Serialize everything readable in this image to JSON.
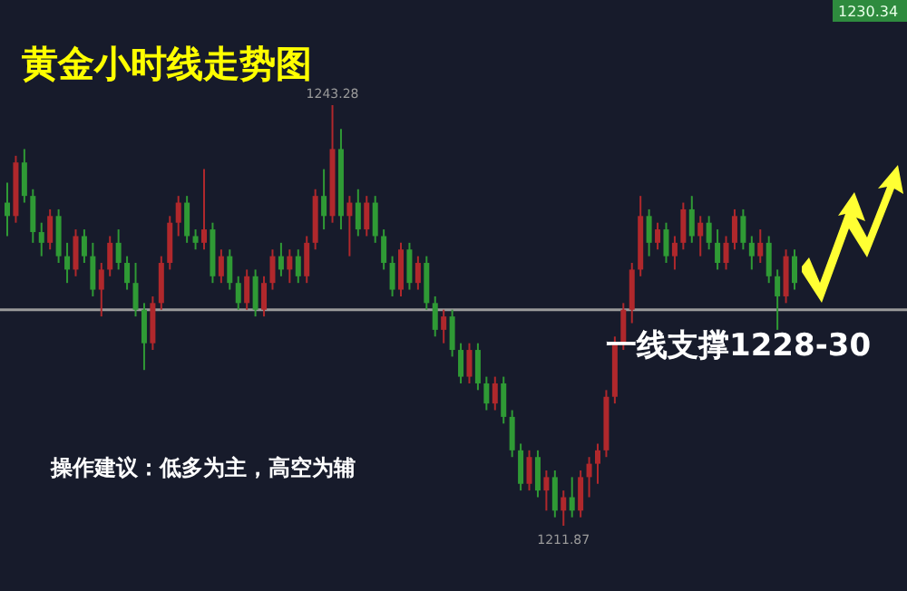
{
  "chart_data": {
    "type": "candlestick",
    "title": "黄金小时线走势图",
    "categories": [
      null,
      null,
      null,
      null,
      null,
      null,
      null,
      null,
      null,
      null,
      null,
      null,
      null,
      null,
      null,
      null,
      null,
      null,
      null,
      null,
      null,
      null,
      null,
      null,
      null,
      null,
      null,
      null,
      null,
      null,
      null,
      null,
      null,
      null,
      null,
      null,
      null,
      null,
      null,
      null,
      null,
      null,
      null,
      null,
      null,
      null,
      null,
      null,
      null,
      null,
      null,
      null,
      null,
      null,
      null,
      null,
      null,
      null,
      null,
      null,
      null,
      null,
      null,
      null,
      null,
      null,
      null,
      null,
      null,
      null,
      null,
      null,
      null,
      null,
      null,
      null,
      null,
      null,
      null,
      null,
      null,
      null,
      null,
      null,
      null,
      null,
      null,
      null,
      null,
      null,
      null,
      null,
      null
    ],
    "ohlc": [
      [
        1236.0,
        1237.5,
        1233.5,
        1235.0
      ],
      [
        1235.0,
        1239.5,
        1234.5,
        1239.0
      ],
      [
        1239.0,
        1240.0,
        1236.0,
        1236.5
      ],
      [
        1236.5,
        1237.0,
        1233.0,
        1233.8
      ],
      [
        1233.8,
        1234.5,
        1232.0,
        1233.0
      ],
      [
        1233.0,
        1235.5,
        1232.5,
        1235.0
      ],
      [
        1235.0,
        1235.5,
        1231.5,
        1232.0
      ],
      [
        1232.0,
        1233.0,
        1230.0,
        1231.0
      ],
      [
        1231.0,
        1234.0,
        1230.5,
        1233.5
      ],
      [
        1233.5,
        1234.0,
        1231.5,
        1232.0
      ],
      [
        1232.0,
        1233.0,
        1229.0,
        1229.5
      ],
      [
        1229.5,
        1231.5,
        1227.5,
        1231.0
      ],
      [
        1231.0,
        1233.5,
        1230.5,
        1233.0
      ],
      [
        1233.0,
        1234.0,
        1231.0,
        1231.5
      ],
      [
        1231.5,
        1232.0,
        1229.5,
        1230.0
      ],
      [
        1230.0,
        1231.5,
        1227.5,
        1228.0
      ],
      [
        1228.0,
        1228.5,
        1223.5,
        1225.5
      ],
      [
        1225.5,
        1229.0,
        1225.0,
        1228.5
      ],
      [
        1228.5,
        1232.0,
        1228.0,
        1231.5
      ],
      [
        1231.5,
        1235.0,
        1231.0,
        1234.5
      ],
      [
        1234.5,
        1236.5,
        1233.5,
        1236.0
      ],
      [
        1236.0,
        1236.5,
        1233.0,
        1233.5
      ],
      [
        1233.5,
        1234.0,
        1232.5,
        1233.0
      ],
      [
        1233.0,
        1238.5,
        1232.5,
        1234.0
      ],
      [
        1234.0,
        1234.5,
        1230.0,
        1230.5
      ],
      [
        1230.5,
        1232.5,
        1230.0,
        1232.0
      ],
      [
        1232.0,
        1232.5,
        1229.5,
        1230.0
      ],
      [
        1230.0,
        1230.5,
        1228.0,
        1228.5
      ],
      [
        1228.5,
        1231.0,
        1228.0,
        1230.5
      ],
      [
        1230.5,
        1231.0,
        1227.5,
        1228.0
      ],
      [
        1228.0,
        1230.5,
        1227.5,
        1230.0
      ],
      [
        1230.0,
        1232.5,
        1229.5,
        1232.0
      ],
      [
        1232.0,
        1233.0,
        1230.5,
        1231.0
      ],
      [
        1231.0,
        1232.5,
        1230.0,
        1232.0
      ],
      [
        1232.0,
        1232.5,
        1230.0,
        1230.5
      ],
      [
        1230.5,
        1233.5,
        1230.0,
        1233.0
      ],
      [
        1233.0,
        1237.0,
        1232.5,
        1236.5
      ],
      [
        1236.5,
        1238.5,
        1234.0,
        1235.0
      ],
      [
        1235.0,
        1243.28,
        1234.5,
        1240.0
      ],
      [
        1240.0,
        1241.5,
        1234.0,
        1235.0
      ],
      [
        1235.0,
        1236.5,
        1232.0,
        1236.0
      ],
      [
        1236.0,
        1237.0,
        1233.5,
        1234.0
      ],
      [
        1234.0,
        1236.5,
        1233.5,
        1236.0
      ],
      [
        1236.0,
        1236.5,
        1233.0,
        1233.5
      ],
      [
        1233.5,
        1234.0,
        1231.0,
        1231.5
      ],
      [
        1231.5,
        1232.0,
        1229.0,
        1229.5
      ],
      [
        1229.5,
        1233.0,
        1229.0,
        1232.5
      ],
      [
        1232.5,
        1233.0,
        1229.5,
        1230.0
      ],
      [
        1230.0,
        1232.0,
        1229.5,
        1231.5
      ],
      [
        1231.5,
        1232.0,
        1228.0,
        1228.5
      ],
      [
        1228.5,
        1229.0,
        1226.0,
        1226.5
      ],
      [
        1226.5,
        1228.0,
        1225.5,
        1227.5
      ],
      [
        1227.5,
        1228.0,
        1224.5,
        1225.0
      ],
      [
        1225.0,
        1225.5,
        1222.5,
        1223.0
      ],
      [
        1223.0,
        1225.5,
        1222.5,
        1225.0
      ],
      [
        1225.0,
        1225.5,
        1222.0,
        1222.5
      ],
      [
        1222.5,
        1223.0,
        1220.5,
        1221.0
      ],
      [
        1221.0,
        1223.0,
        1220.5,
        1222.5
      ],
      [
        1222.5,
        1223.0,
        1219.5,
        1220.0
      ],
      [
        1220.0,
        1220.5,
        1217.0,
        1217.5
      ],
      [
        1217.5,
        1218.0,
        1214.5,
        1215.0
      ],
      [
        1215.0,
        1217.5,
        1214.5,
        1217.0
      ],
      [
        1217.0,
        1217.5,
        1214.0,
        1214.5
      ],
      [
        1214.5,
        1216.0,
        1213.0,
        1215.5
      ],
      [
        1215.5,
        1216.0,
        1212.5,
        1213.0
      ],
      [
        1213.0,
        1214.5,
        1211.87,
        1214.0
      ],
      [
        1214.0,
        1215.5,
        1212.5,
        1213.0
      ],
      [
        1213.0,
        1216.0,
        1212.5,
        1215.5
      ],
      [
        1215.5,
        1217.0,
        1214.0,
        1216.5
      ],
      [
        1216.5,
        1218.0,
        1215.0,
        1217.5
      ],
      [
        1217.5,
        1222.0,
        1217.0,
        1221.5
      ],
      [
        1221.5,
        1226.0,
        1221.0,
        1225.5
      ],
      [
        1225.5,
        1228.5,
        1225.0,
        1228.0
      ],
      [
        1228.0,
        1231.5,
        1227.0,
        1231.0
      ],
      [
        1231.0,
        1236.5,
        1230.5,
        1235.0
      ],
      [
        1235.0,
        1235.5,
        1232.0,
        1233.0
      ],
      [
        1233.0,
        1234.5,
        1232.5,
        1234.0
      ],
      [
        1234.0,
        1234.5,
        1231.5,
        1232.0
      ],
      [
        1232.0,
        1233.5,
        1231.0,
        1233.0
      ],
      [
        1233.0,
        1236.0,
        1232.5,
        1235.5
      ],
      [
        1235.5,
        1236.5,
        1233.0,
        1233.5
      ],
      [
        1233.5,
        1235.0,
        1232.0,
        1234.5
      ],
      [
        1234.5,
        1235.0,
        1232.5,
        1233.0
      ],
      [
        1233.0,
        1234.0,
        1231.0,
        1231.5
      ],
      [
        1231.5,
        1233.5,
        1231.0,
        1233.0
      ],
      [
        1233.0,
        1235.5,
        1232.5,
        1235.0
      ],
      [
        1235.0,
        1235.5,
        1232.5,
        1233.0
      ],
      [
        1233.0,
        1233.5,
        1231.0,
        1232.0
      ],
      [
        1232.0,
        1234.0,
        1231.5,
        1233.0
      ],
      [
        1233.0,
        1233.5,
        1230.0,
        1230.5
      ],
      [
        1230.5,
        1231.0,
        1226.5,
        1229.0
      ],
      [
        1229.0,
        1232.5,
        1228.5,
        1232.0
      ],
      [
        1232.0,
        1232.5,
        1229.5,
        1230.0
      ]
    ],
    "colors": [
      "#2f9a35",
      "#b0282c",
      "#2f9a35",
      "#2f9a35",
      "#2f9a35",
      "#b0282c",
      "#2f9a35",
      "#2f9a35",
      "#b0282c",
      "#2f9a35",
      "#2f9a35",
      "#b0282c",
      "#b0282c",
      "#2f9a35",
      "#2f9a35",
      "#2f9a35",
      "#2f9a35",
      "#b0282c",
      "#b0282c",
      "#b0282c",
      "#b0282c",
      "#2f9a35",
      "#2f9a35",
      "#b0282c",
      "#2f9a35",
      "#b0282c",
      "#2f9a35",
      "#2f9a35",
      "#b0282c",
      "#2f9a35",
      "#b0282c",
      "#b0282c",
      "#2f9a35",
      "#b0282c",
      "#2f9a35",
      "#b0282c",
      "#b0282c",
      "#2f9a35",
      "#b0282c",
      "#2f9a35",
      "#b0282c",
      "#2f9a35",
      "#b0282c",
      "#2f9a35",
      "#2f9a35",
      "#2f9a35",
      "#b0282c",
      "#2f9a35",
      "#b0282c",
      "#2f9a35",
      "#2f9a35",
      "#b0282c",
      "#2f9a35",
      "#2f9a35",
      "#b0282c",
      "#2f9a35",
      "#2f9a35",
      "#b0282c",
      "#2f9a35",
      "#2f9a35",
      "#2f9a35",
      "#b0282c",
      "#2f9a35",
      "#b0282c",
      "#2f9a35",
      "#b0282c",
      "#2f9a35",
      "#b0282c",
      "#b0282c",
      "#b0282c",
      "#b0282c",
      "#b0282c",
      "#b0282c",
      "#b0282c",
      "#b0282c",
      "#2f9a35",
      "#b0282c",
      "#2f9a35",
      "#b0282c",
      "#b0282c",
      "#2f9a35",
      "#b0282c",
      "#2f9a35",
      "#2f9a35",
      "#b0282c",
      "#b0282c",
      "#2f9a35",
      "#2f9a35",
      "#b0282c",
      "#2f9a35",
      "#2f9a35",
      "#b0282c",
      "#2f9a35"
    ],
    "ref_lines": [
      {
        "axis": "y",
        "value": 1228.0,
        "color": "#9a9a9a"
      }
    ],
    "annotations": [
      "操作建议：低多为主，高空为辅",
      "一线支撑1228-30",
      "1230.34",
      {
        "text": "1243.28",
        "y": 1243.28
      },
      {
        "text": "1211.87",
        "y": 1211.87
      }
    ]
  }
}
